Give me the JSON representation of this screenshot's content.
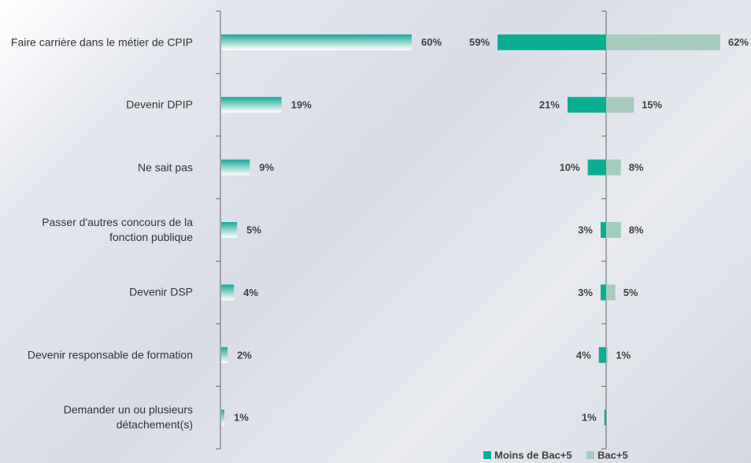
{
  "chart_data": [
    {
      "type": "hbar",
      "categories": [
        "Faire carrière dans le métier de CPIP",
        "Devenir DPIP",
        "Ne sait pas",
        "Passer d'autres concours de la fonction publique",
        "Devenir DSP",
        "Devenir responsable de formation",
        "Demander un ou plusieurs détachement(s)"
      ],
      "values": [
        60,
        19,
        9,
        5,
        4,
        2,
        1
      ],
      "value_labels": [
        "60%",
        "19%",
        "9%",
        "5%",
        "4%",
        "2%",
        "1%"
      ],
      "color": "#14a89a",
      "xlim": [
        0,
        60
      ]
    },
    {
      "type": "diverging",
      "series": [
        {
          "name": "Moins de Bac+5",
          "color": "#0aae92",
          "values": [
            59,
            21,
            10,
            3,
            3,
            4,
            1
          ],
          "value_labels": [
            "59%",
            "21%",
            "10%",
            "3%",
            "3%",
            "4%",
            "1%"
          ]
        },
        {
          "name": "Bac+5",
          "color": "#a5cbbf",
          "values": [
            62,
            15,
            8,
            8,
            5,
            1,
            null
          ],
          "value_labels": [
            "62%",
            "15%",
            "8%",
            "8%",
            "5%",
            "1%",
            null
          ]
        }
      ],
      "xlim": [
        0,
        62
      ],
      "legend": "bottom"
    }
  ]
}
